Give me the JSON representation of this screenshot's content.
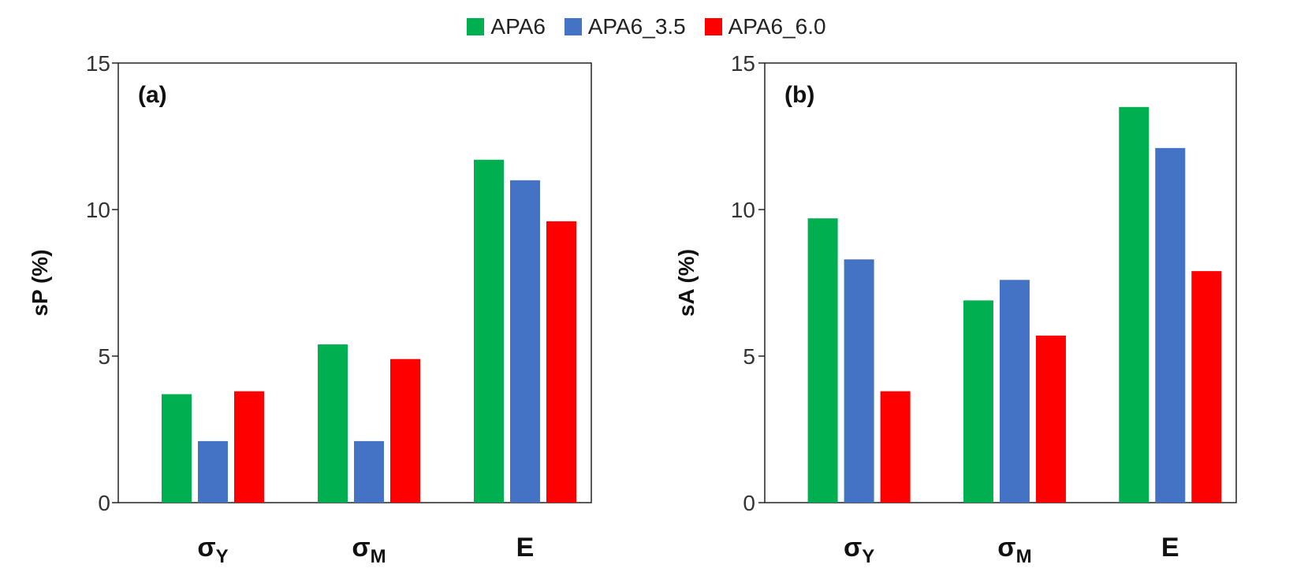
{
  "chart_data": [
    {
      "type": "bar",
      "panel_label": "(a)",
      "categories": [
        {
          "main": "σ",
          "sub": "Y"
        },
        {
          "main": "σ",
          "sub": "M"
        },
        {
          "main": "E",
          "sub": ""
        }
      ],
      "series": [
        {
          "name": "APA6",
          "values": [
            3.7,
            5.4,
            11.7
          ]
        },
        {
          "name": "APA6_3.5",
          "values": [
            2.1,
            2.1,
            11.0
          ]
        },
        {
          "name": "APA6_6.0",
          "values": [
            3.8,
            4.9,
            9.6
          ]
        }
      ],
      "ylabel": "sP  (%)",
      "ylim": [
        0,
        15
      ],
      "yticks": [
        "0",
        "5",
        "10",
        "15"
      ]
    },
    {
      "type": "bar",
      "panel_label": "(b)",
      "categories": [
        {
          "main": "σ",
          "sub": "Y"
        },
        {
          "main": "σ",
          "sub": "M"
        },
        {
          "main": "E",
          "sub": ""
        }
      ],
      "series": [
        {
          "name": "APA6",
          "values": [
            9.7,
            6.9,
            13.5
          ]
        },
        {
          "name": "APA6_3.5",
          "values": [
            8.3,
            7.6,
            12.1
          ]
        },
        {
          "name": "APA6_6.0",
          "values": [
            3.8,
            5.7,
            7.9
          ]
        }
      ],
      "ylabel": "sA (%)",
      "ylim": [
        0,
        15
      ],
      "yticks": [
        "0",
        "5",
        "10",
        "15"
      ]
    }
  ],
  "legend": {
    "items": [
      {
        "label": "APA6",
        "color": "#00b050"
      },
      {
        "label": "APA6_3.5",
        "color": "#4472c4"
      },
      {
        "label": "APA6_6.0",
        "color": "#ff0000"
      }
    ]
  }
}
